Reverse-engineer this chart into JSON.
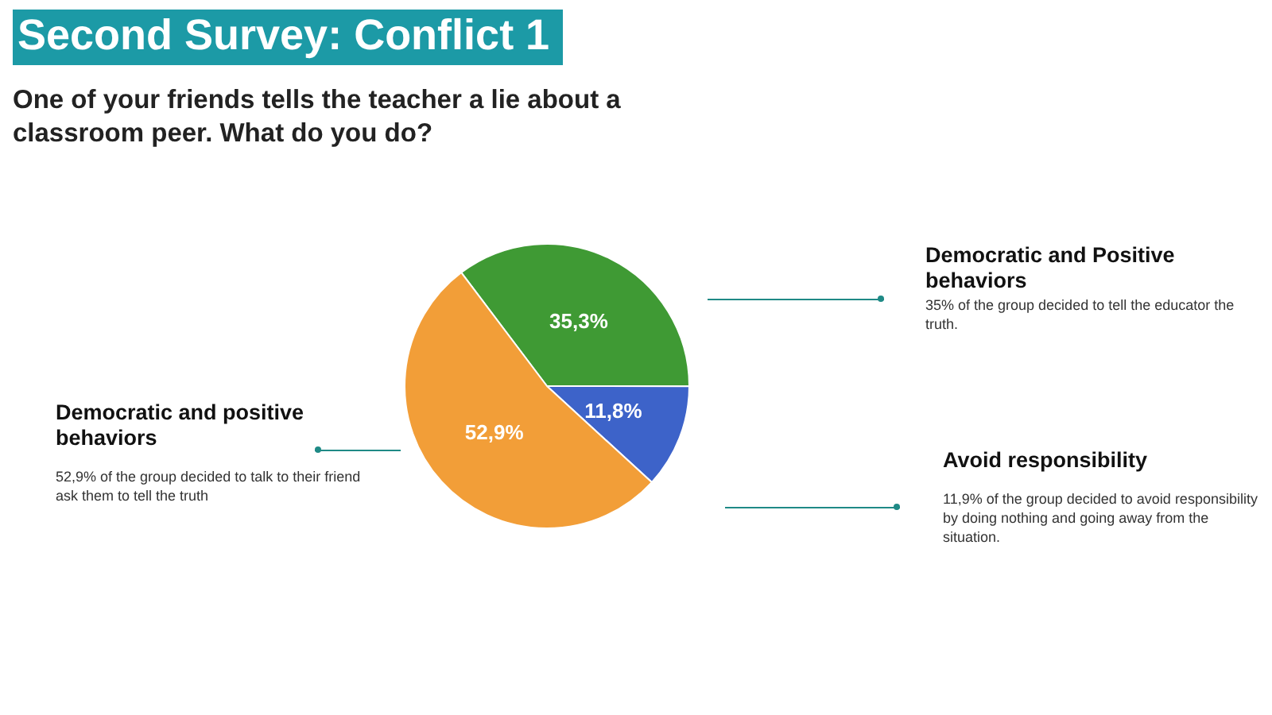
{
  "chart_data": {
    "type": "pie",
    "title": "Second Survey: Conflict 1",
    "subtitle": "One of your friends tells the teacher a lie about a classroom peer. What do you do?",
    "categories": [
      null,
      null,
      null
    ],
    "values": [
      35.3,
      11.8,
      52.9
    ],
    "colors": [
      "#3f9a34",
      "#3d63c9",
      "#f29e38"
    ],
    "value_labels": [
      "35,3%",
      "11,8%",
      "52,9%"
    ],
    "annotations": [
      "Democratic and Positive behaviors",
      "35% of the group decided to tell the educator the truth.",
      "Avoid responsibility",
      "11,9% of the group decided to avoid responsibility  by doing nothing and going away from the situation.",
      "Democratic and positive behaviors",
      "52,9% of the group decided to talk to their friend ask them to tell the truth"
    ],
    "legend": false
  }
}
